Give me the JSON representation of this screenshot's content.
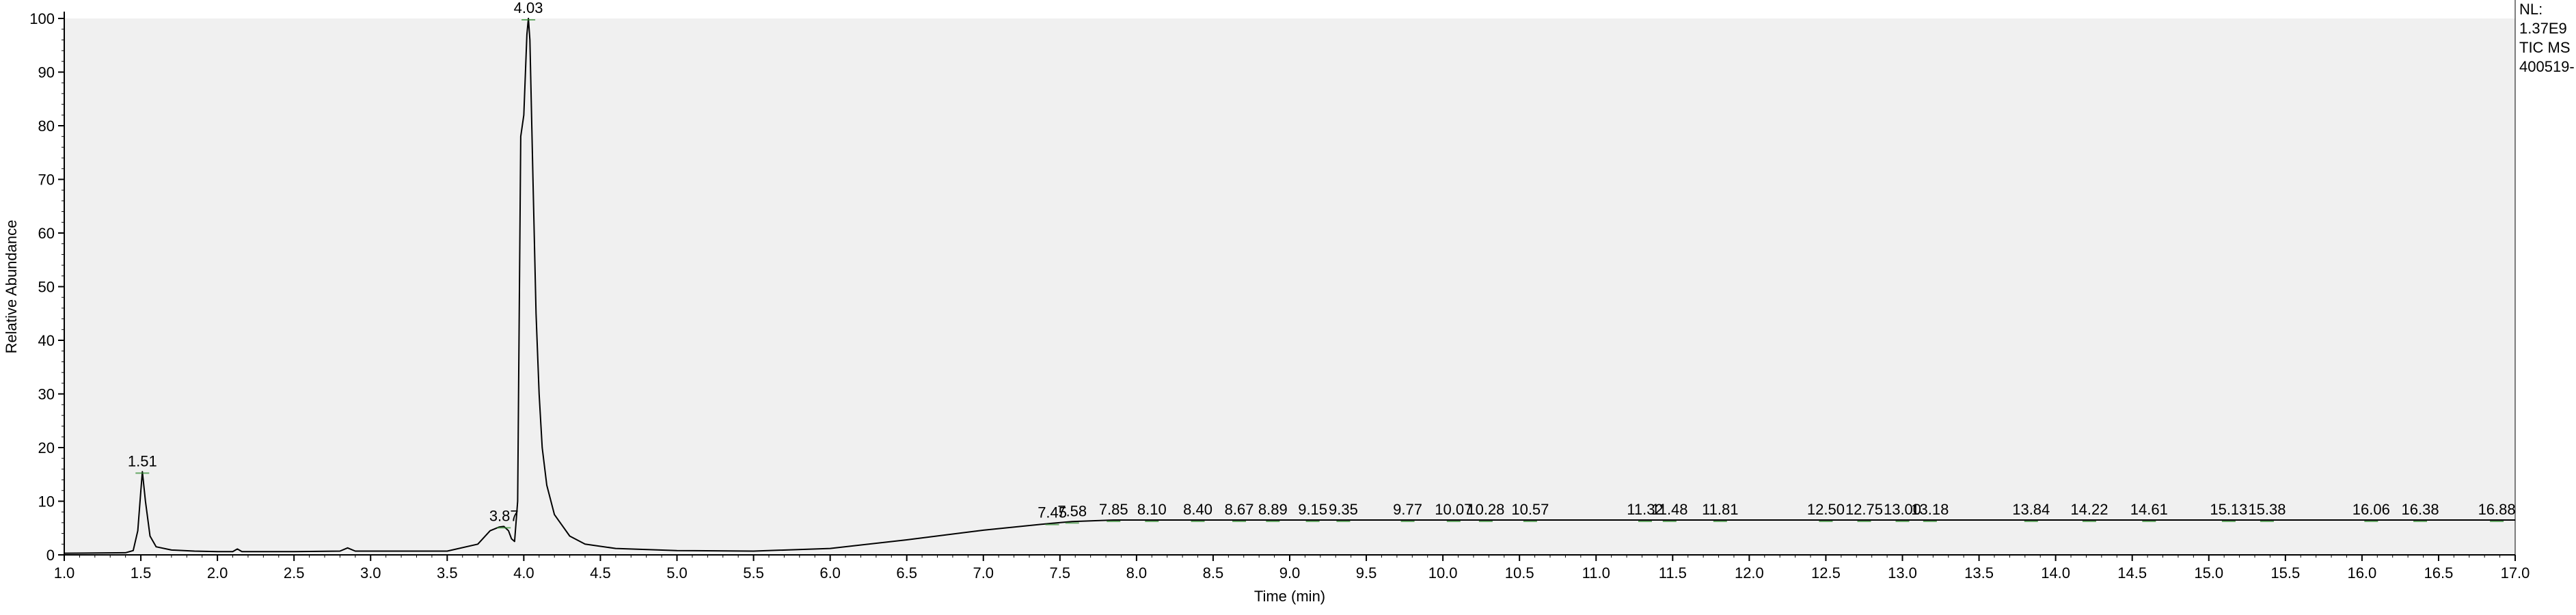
{
  "chart_data": {
    "type": "line",
    "xlabel": "Time (min)",
    "ylabel": "Relative Abundance",
    "xlim": [
      1.0,
      17.0
    ],
    "ylim": [
      0,
      100
    ],
    "x_ticks": [
      "1.0",
      "1.5",
      "2.0",
      "2.5",
      "3.0",
      "3.5",
      "4.0",
      "4.5",
      "5.0",
      "5.5",
      "6.0",
      "6.5",
      "7.0",
      "7.5",
      "8.0",
      "8.5",
      "9.0",
      "9.5",
      "10.0",
      "10.5",
      "11.0",
      "11.5",
      "12.0",
      "12.5",
      "13.0",
      "13.5",
      "14.0",
      "14.5",
      "15.0",
      "15.5",
      "16.0",
      "16.5",
      "17.0"
    ],
    "y_ticks": [
      "0",
      "10",
      "20",
      "30",
      "40",
      "50",
      "60",
      "70",
      "80",
      "90",
      "100"
    ],
    "grid": false,
    "info": [
      "NL:",
      "1.37E9",
      "TIC  MS",
      "400519-"
    ],
    "series": [
      {
        "color": "#000000",
        "x": [
          1.0,
          1.4,
          1.45,
          1.48,
          1.5,
          1.51,
          1.53,
          1.56,
          1.6,
          1.7,
          1.85,
          2.0,
          2.1,
          2.13,
          2.16,
          2.5,
          2.8,
          2.85,
          2.9,
          3.5,
          3.7,
          3.78,
          3.84,
          3.87,
          3.9,
          3.92,
          3.94,
          3.96,
          3.97,
          3.98,
          4.0,
          4.02,
          4.03,
          4.04,
          4.06,
          4.08,
          4.1,
          4.12,
          4.15,
          4.2,
          4.3,
          4.4,
          4.6,
          5.0,
          5.5,
          6.0,
          6.5,
          7.0,
          7.45,
          7.58,
          7.85,
          8.1,
          8.4,
          8.67,
          8.89,
          9.15,
          9.35,
          9.77,
          10.07,
          10.28,
          10.57,
          11.32,
          11.48,
          11.81,
          12.5,
          12.75,
          13.0,
          13.18,
          13.84,
          14.22,
          14.61,
          15.13,
          15.38,
          16.06,
          16.38,
          16.88,
          17.0
        ],
        "y": [
          0.3,
          0.4,
          0.8,
          4.5,
          12.0,
          15.5,
          10.0,
          3.5,
          1.5,
          0.9,
          0.7,
          0.6,
          0.6,
          1.1,
          0.6,
          0.6,
          0.7,
          1.3,
          0.7,
          0.7,
          2.0,
          4.5,
          5.2,
          5.3,
          4.5,
          3.0,
          2.5,
          10.0,
          45.0,
          78.0,
          82.0,
          97.0,
          100.0,
          96.0,
          70.0,
          45.0,
          30.0,
          20.0,
          13.0,
          7.5,
          3.5,
          2.0,
          1.2,
          0.8,
          0.7,
          1.2,
          2.8,
          4.6,
          5.9,
          6.2,
          6.5,
          6.5,
          6.5,
          6.5,
          6.5,
          6.5,
          6.5,
          6.5,
          6.5,
          6.5,
          6.5,
          6.5,
          6.5,
          6.5,
          6.5,
          6.5,
          6.5,
          6.5,
          6.5,
          6.5,
          6.5,
          6.5,
          6.5,
          6.5,
          6.5,
          6.5,
          6.5
        ]
      }
    ],
    "peak_labels": [
      {
        "x": 1.51,
        "y": 15.5,
        "label": "1.51"
      },
      {
        "x": 3.87,
        "y": 5.3,
        "label": "3.87"
      },
      {
        "x": 4.03,
        "y": 100.0,
        "label": "4.03"
      },
      {
        "x": 7.45,
        "y": 5.9,
        "label": "7.45"
      },
      {
        "x": 7.58,
        "y": 6.2,
        "label": "7.58"
      },
      {
        "x": 7.85,
        "y": 6.5,
        "label": "7.85"
      },
      {
        "x": 8.1,
        "y": 6.5,
        "label": "8.10"
      },
      {
        "x": 8.4,
        "y": 6.5,
        "label": "8.40"
      },
      {
        "x": 8.67,
        "y": 6.5,
        "label": "8.67"
      },
      {
        "x": 8.89,
        "y": 6.5,
        "label": "8.89"
      },
      {
        "x": 9.15,
        "y": 6.5,
        "label": "9.15"
      },
      {
        "x": 9.35,
        "y": 6.5,
        "label": "9.35"
      },
      {
        "x": 9.77,
        "y": 6.5,
        "label": "9.77"
      },
      {
        "x": 10.07,
        "y": 6.5,
        "label": "10.07"
      },
      {
        "x": 10.28,
        "y": 6.5,
        "label": "10.28"
      },
      {
        "x": 10.57,
        "y": 6.5,
        "label": "10.57"
      },
      {
        "x": 11.32,
        "y": 6.5,
        "label": "11.32"
      },
      {
        "x": 11.48,
        "y": 6.5,
        "label": "11.48"
      },
      {
        "x": 11.81,
        "y": 6.5,
        "label": "11.81"
      },
      {
        "x": 12.5,
        "y": 6.5,
        "label": "12.50"
      },
      {
        "x": 12.75,
        "y": 6.5,
        "label": "12.75"
      },
      {
        "x": 13.0,
        "y": 6.5,
        "label": "13.00"
      },
      {
        "x": 13.18,
        "y": 6.5,
        "label": "13.18"
      },
      {
        "x": 13.84,
        "y": 6.5,
        "label": "13.84"
      },
      {
        "x": 14.22,
        "y": 6.5,
        "label": "14.22"
      },
      {
        "x": 14.61,
        "y": 6.5,
        "label": "14.61"
      },
      {
        "x": 15.13,
        "y": 6.5,
        "label": "15.13"
      },
      {
        "x": 15.38,
        "y": 6.5,
        "label": "15.38"
      },
      {
        "x": 16.06,
        "y": 6.5,
        "label": "16.06"
      },
      {
        "x": 16.38,
        "y": 6.5,
        "label": "16.38"
      },
      {
        "x": 16.88,
        "y": 6.5,
        "label": "16.88"
      }
    ],
    "colors": {
      "plot_background": "#f0f0f0",
      "trace": "#000000",
      "integration_marks": "#2e8b2e"
    }
  }
}
